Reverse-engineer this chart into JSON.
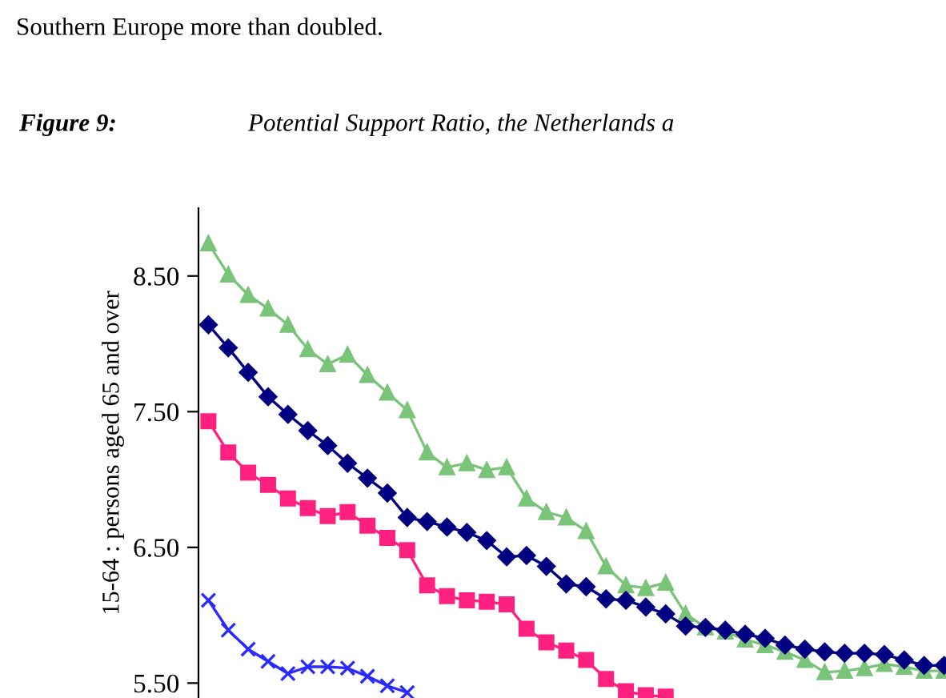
{
  "chart_data": {
    "type": "line",
    "annotations": [
      "Southern Europe more than doubled.",
      "Figure 9:",
      "Potential Support Ratio, the Netherlands a"
    ],
    "ylabel": "15-64 : persons aged 65 and over",
    "categories": [
      null,
      null,
      null,
      null,
      null,
      null,
      null,
      null,
      null,
      null,
      null,
      null,
      null,
      null,
      null,
      null,
      null,
      null,
      null,
      null,
      null,
      null,
      null,
      null,
      null,
      null,
      null,
      null,
      null,
      null,
      null,
      null,
      null,
      null,
      null,
      null,
      null,
      null
    ],
    "ylim": [
      5.39,
      9.0
    ],
    "yticks": [
      {
        "value": 5.5,
        "label": "5.50"
      },
      {
        "value": 6.5,
        "label": "6.50"
      },
      {
        "value": 7.5,
        "label": "7.50"
      },
      {
        "value": 8.5,
        "label": "8.50"
      }
    ],
    "line_style": "solid",
    "series": [
      {
        "color": "#7ac47a",
        "marker": "triangle",
        "values": [
          8.74,
          8.51,
          8.36,
          8.26,
          8.14,
          7.96,
          7.85,
          7.92,
          7.77,
          7.64,
          7.51,
          7.2,
          7.09,
          7.12,
          7.07,
          7.09,
          6.86,
          6.76,
          6.72,
          6.62,
          6.36,
          6.22,
          6.2,
          6.24,
          6.01,
          5.91,
          5.88,
          5.82,
          5.78,
          5.73,
          5.67,
          5.58,
          5.59,
          5.61,
          5.64,
          5.62,
          5.59,
          5.59
        ]
      },
      {
        "color": "#000080",
        "marker": "diamond",
        "values": [
          8.14,
          7.97,
          7.79,
          7.61,
          7.48,
          7.36,
          7.25,
          7.12,
          7.01,
          6.9,
          6.72,
          6.69,
          6.65,
          6.61,
          6.55,
          6.43,
          6.44,
          6.36,
          6.23,
          6.21,
          6.12,
          6.11,
          6.06,
          6.01,
          5.92,
          5.91,
          5.89,
          5.86,
          5.83,
          5.78,
          5.75,
          5.73,
          5.72,
          5.72,
          5.71,
          5.67,
          5.63,
          5.63
        ]
      },
      {
        "color": "#ff2080",
        "marker": "square",
        "values": [
          7.43,
          7.2,
          7.05,
          6.96,
          6.86,
          6.79,
          6.73,
          6.76,
          6.66,
          6.57,
          6.48,
          6.22,
          6.14,
          6.11,
          6.1,
          6.08,
          5.9,
          5.8,
          5.74,
          5.67,
          5.53,
          5.44,
          5.41,
          5.4,
          null,
          null,
          null,
          null,
          null,
          null,
          null,
          null,
          null,
          null,
          null,
          null,
          null,
          null
        ]
      },
      {
        "color": "#2a2aff",
        "marker": "cross",
        "values": [
          6.11,
          5.89,
          5.75,
          5.66,
          5.57,
          5.62,
          5.62,
          5.61,
          5.55,
          5.48,
          5.43,
          null,
          null,
          null,
          null,
          null,
          null,
          null,
          null,
          null,
          null,
          null,
          null,
          null,
          null,
          null,
          null,
          null,
          null,
          null,
          null,
          null,
          null,
          null,
          null,
          null,
          null,
          null
        ]
      }
    ]
  }
}
